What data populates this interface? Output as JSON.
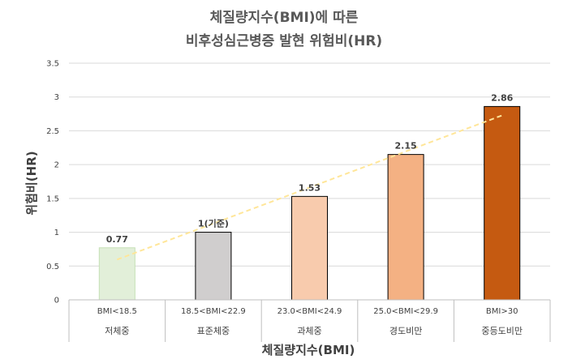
{
  "chart_data": {
    "type": "bar",
    "title_lines": [
      "체질량지수(BMI)에 따른",
      "비후성심근병증 발현 위험비(HR)"
    ],
    "xlabel": "체질량지수(BMI)",
    "ylabel": "위험비(HR)",
    "ylim": [
      0,
      3.5
    ],
    "yticks": [
      "0",
      "0.5",
      "1",
      "1.5",
      "2",
      "2.5",
      "3",
      "3.5"
    ],
    "grid": true,
    "trendline": "linear, dashed",
    "categories": [
      {
        "range": "BMI<18.5",
        "group": "저체중"
      },
      {
        "range": "18.5<BMI<22.9",
        "group": "표준체중"
      },
      {
        "range": "23.0<BMI<24.9",
        "group": "과체중"
      },
      {
        "range": "25.0<BMI<29.9",
        "group": "경도비만"
      },
      {
        "range": "BMI>30",
        "group": "중등도비만"
      }
    ],
    "values": [
      0.77,
      1,
      1.53,
      2.15,
      2.86
    ],
    "value_labels": [
      "0.77",
      "1(기준)",
      "1.53",
      "2.15",
      "2.86"
    ],
    "bar_fill": [
      "#e2efd9",
      "#d0cece",
      "#f8cbad",
      "#f4b183",
      "#c55a11"
    ],
    "bar_stroke": [
      "#c5e0b4",
      "#000000",
      "#000000",
      "#000000",
      "#000000"
    ],
    "trend_color": "#ffe699"
  }
}
